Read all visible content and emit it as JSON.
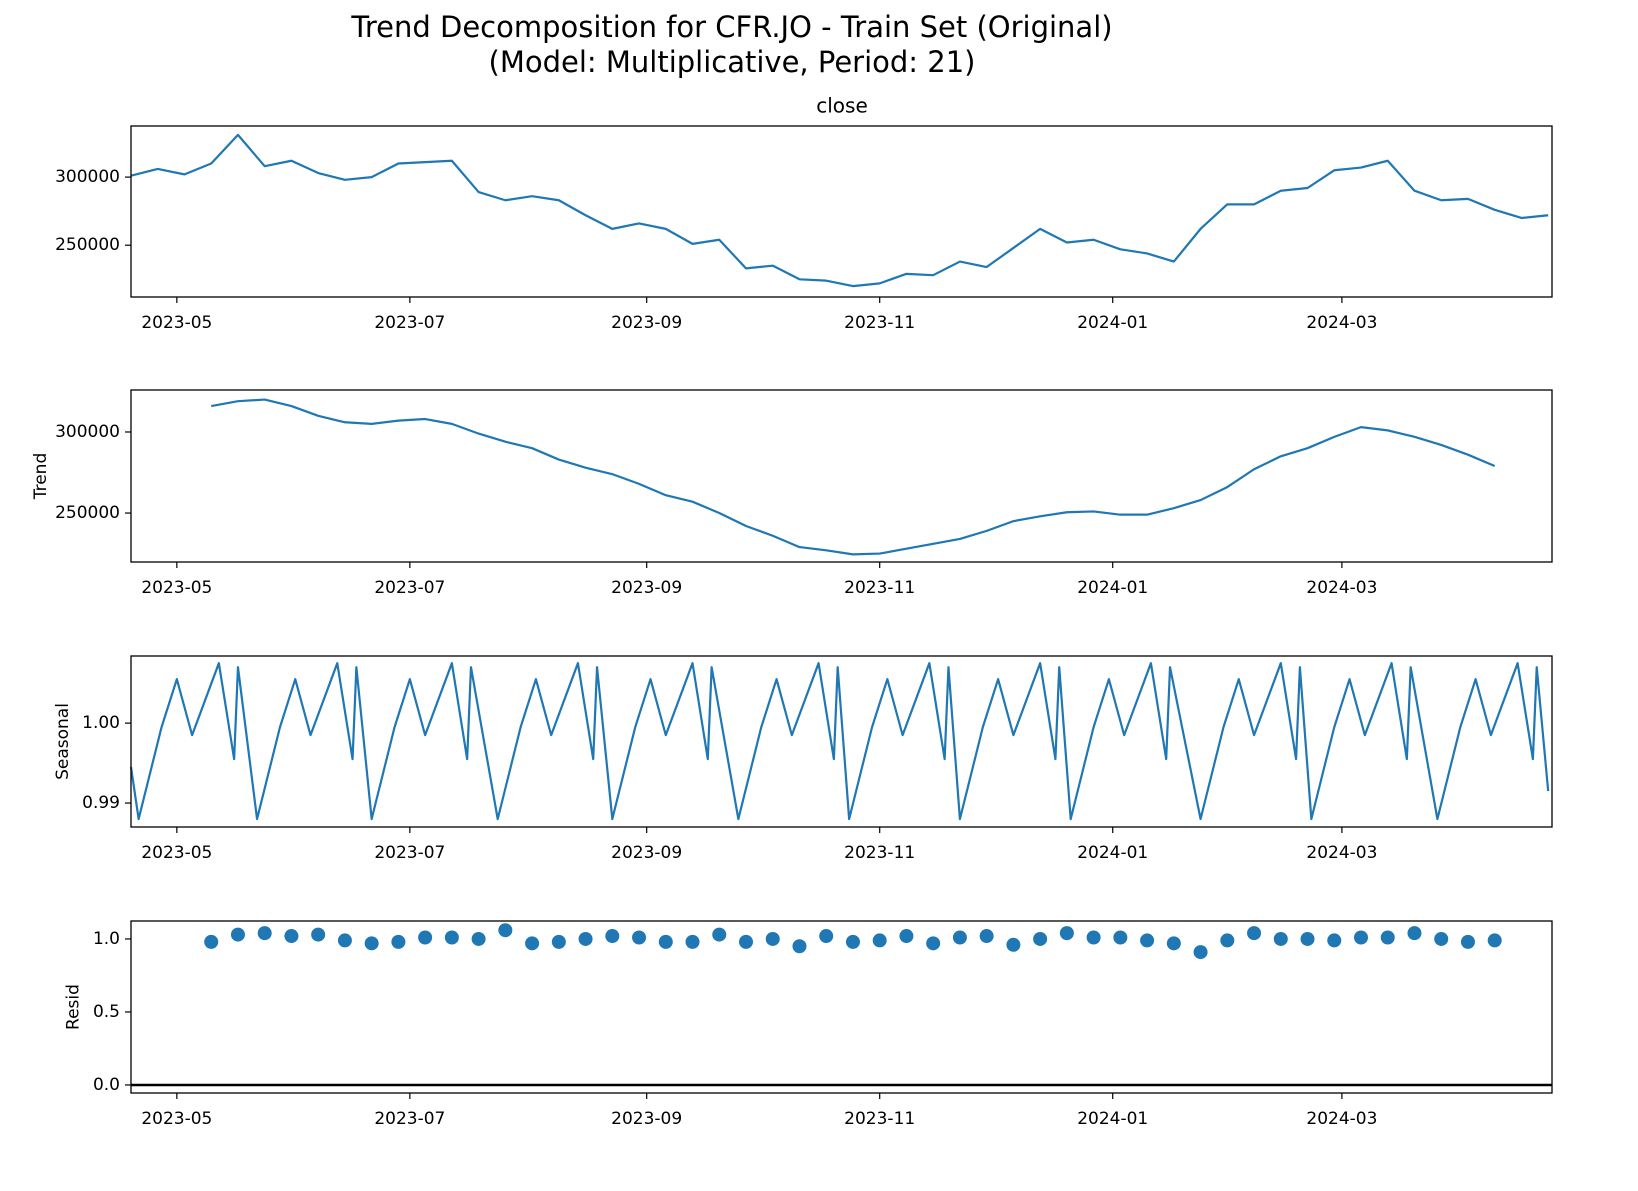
{
  "chart_data": [
    {
      "type": "line",
      "title": "Trend Decomposition for CFR.JO - Train Set (Original)",
      "subtitle": "(Model: Multiplicative, Period: 21)",
      "panel_title": "close",
      "color": "#1f77b4",
      "x": [
        "2023-04-19",
        "2023-04-26",
        "2023-05-03",
        "2023-05-10",
        "2023-05-17",
        "2023-05-24",
        "2023-05-31",
        "2023-06-07",
        "2023-06-14",
        "2023-06-21",
        "2023-06-28",
        "2023-07-05",
        "2023-07-12",
        "2023-07-19",
        "2023-07-26",
        "2023-08-02",
        "2023-08-09",
        "2023-08-16",
        "2023-08-23",
        "2023-08-30",
        "2023-09-06",
        "2023-09-13",
        "2023-09-20",
        "2023-09-27",
        "2023-10-04",
        "2023-10-11",
        "2023-10-18",
        "2023-10-25",
        "2023-11-01",
        "2023-11-08",
        "2023-11-15",
        "2023-11-22",
        "2023-11-29",
        "2023-12-06",
        "2023-12-13",
        "2023-12-20",
        "2023-12-27",
        "2024-01-03",
        "2024-01-10",
        "2024-01-17",
        "2024-01-24",
        "2024-01-31",
        "2024-02-07",
        "2024-02-14",
        "2024-02-21",
        "2024-02-28",
        "2024-03-06",
        "2024-03-13",
        "2024-03-20",
        "2024-03-27",
        "2024-04-03",
        "2024-04-10",
        "2024-04-17",
        "2024-04-24"
      ],
      "values": [
        301000,
        306000,
        302000,
        310000,
        331000,
        308000,
        312000,
        303000,
        298000,
        300000,
        310000,
        311000,
        312000,
        289000,
        283000,
        286000,
        283000,
        272000,
        262000,
        266000,
        262000,
        251000,
        254000,
        233000,
        235000,
        225000,
        224000,
        220000,
        222000,
        229000,
        228000,
        238000,
        234000,
        248000,
        262000,
        252000,
        254000,
        247000,
        244000,
        238000,
        262000,
        280000,
        280000,
        290000,
        292000,
        305000,
        307000,
        312000,
        290000,
        283000,
        284000,
        276000,
        270000,
        272000
      ],
      "xlim": [
        "2023-04-19",
        "2024-04-25"
      ],
      "xticks": [
        {
          "value": "2023-05-01",
          "label": "2023-05"
        },
        {
          "value": "2023-07-01",
          "label": "2023-07"
        },
        {
          "value": "2023-09-01",
          "label": "2023-09"
        },
        {
          "value": "2023-11-01",
          "label": "2023-11"
        },
        {
          "value": "2024-01-01",
          "label": "2024-01"
        },
        {
          "value": "2024-03-01",
          "label": "2024-03"
        }
      ],
      "ylim": [
        212000,
        337500
      ],
      "yticks": [
        250000,
        300000
      ]
    },
    {
      "type": "line",
      "ylabel": "Trend",
      "color": "#1f77b4",
      "x": [
        "2023-04-19",
        "2023-04-26",
        "2023-05-03",
        "2023-05-10",
        "2023-05-17",
        "2023-05-24",
        "2023-05-31",
        "2023-06-07",
        "2023-06-14",
        "2023-06-21",
        "2023-06-28",
        "2023-07-05",
        "2023-07-12",
        "2023-07-19",
        "2023-07-26",
        "2023-08-02",
        "2023-08-09",
        "2023-08-16",
        "2023-08-23",
        "2023-08-30",
        "2023-09-06",
        "2023-09-13",
        "2023-09-20",
        "2023-09-27",
        "2023-10-04",
        "2023-10-11",
        "2023-10-18",
        "2023-10-25",
        "2023-11-01",
        "2023-11-08",
        "2023-11-15",
        "2023-11-22",
        "2023-11-29",
        "2023-12-06",
        "2023-12-13",
        "2023-12-20",
        "2023-12-27",
        "2024-01-03",
        "2024-01-10",
        "2024-01-17",
        "2024-01-24",
        "2024-01-31",
        "2024-02-07",
        "2024-02-14",
        "2024-02-21",
        "2024-02-28",
        "2024-03-06",
        "2024-03-13",
        "2024-03-20",
        "2024-03-27",
        "2024-04-03",
        "2024-04-10",
        "2024-04-17",
        "2024-04-24"
      ],
      "values": [
        null,
        null,
        null,
        316000,
        319000,
        320000,
        316000,
        310000,
        306000,
        305000,
        307000,
        308000,
        305000,
        299000,
        294000,
        290000,
        283000,
        278000,
        274000,
        268000,
        261000,
        257000,
        250000,
        242000,
        236000,
        229000,
        227000,
        224500,
        225000,
        228000,
        231000,
        234000,
        239000,
        245000,
        248000,
        250500,
        251000,
        249000,
        249000,
        253000,
        258000,
        266000,
        277000,
        285000,
        290000,
        297000,
        303000,
        301000,
        297000,
        292000,
        286000,
        279000,
        null,
        null
      ],
      "xlim": [
        "2023-04-19",
        "2024-04-25"
      ],
      "xticks": [
        {
          "value": "2023-05-01",
          "label": "2023-05"
        },
        {
          "value": "2023-07-01",
          "label": "2023-07"
        },
        {
          "value": "2023-09-01",
          "label": "2023-09"
        },
        {
          "value": "2023-11-01",
          "label": "2023-11"
        },
        {
          "value": "2024-01-01",
          "label": "2024-01"
        },
        {
          "value": "2024-03-01",
          "label": "2024-03"
        }
      ],
      "ylim": [
        219800,
        325900
      ],
      "yticks": [
        250000,
        300000
      ]
    },
    {
      "type": "line",
      "ylabel": "Seasonal",
      "color": "#1f77b4",
      "x": [
        "2023-04-19",
        "2023-04-21",
        "2023-04-27",
        "2023-05-01",
        "2023-05-05",
        "2023-05-12",
        "2023-05-16",
        "2023-05-17",
        "2023-05-22",
        "2023-05-28",
        "2023-06-01",
        "2023-06-05",
        "2023-06-12",
        "2023-06-16",
        "2023-06-17",
        "2023-06-21",
        "2023-06-27",
        "2023-07-01",
        "2023-07-05",
        "2023-07-12",
        "2023-07-16",
        "2023-07-17",
        "2023-07-24",
        "2023-07-30",
        "2023-08-03",
        "2023-08-07",
        "2023-08-14",
        "2023-08-18",
        "2023-08-19",
        "2023-08-23",
        "2023-08-29",
        "2023-09-02",
        "2023-09-06",
        "2023-09-13",
        "2023-09-17",
        "2023-09-18",
        "2023-09-25",
        "2023-10-01",
        "2023-10-05",
        "2023-10-09",
        "2023-10-16",
        "2023-10-20",
        "2023-10-21",
        "2023-10-24",
        "2023-10-30",
        "2023-11-03",
        "2023-11-07",
        "2023-11-14",
        "2023-11-18",
        "2023-11-19",
        "2023-11-22",
        "2023-11-28",
        "2023-12-02",
        "2023-12-06",
        "2023-12-13",
        "2023-12-17",
        "2023-12-18",
        "2023-12-21",
        "2023-12-27",
        "2023-12-31",
        "2024-01-04",
        "2024-01-11",
        "2024-01-15",
        "2024-01-16",
        "2024-01-24",
        "2024-01-30",
        "2024-02-03",
        "2024-02-07",
        "2024-02-14",
        "2024-02-18",
        "2024-02-19",
        "2024-02-22",
        "2024-02-28",
        "2024-03-03",
        "2024-03-07",
        "2024-03-14",
        "2024-03-18",
        "2024-03-19",
        "2024-03-26",
        "2024-04-01",
        "2024-04-05",
        "2024-04-09",
        "2024-04-16",
        "2024-04-20",
        "2024-04-21",
        "2024-04-24"
      ],
      "values": [
        0.9945,
        0.988,
        0.9995,
        1.0055,
        0.9985,
        1.0075,
        0.9955,
        1.007,
        0.988,
        0.9995,
        1.0055,
        0.9985,
        1.0075,
        0.9955,
        1.007,
        0.988,
        0.9995,
        1.0055,
        0.9985,
        1.0075,
        0.9955,
        1.007,
        0.988,
        0.9995,
        1.0055,
        0.9985,
        1.0075,
        0.9955,
        1.007,
        0.988,
        0.9995,
        1.0055,
        0.9985,
        1.0075,
        0.9955,
        1.007,
        0.988,
        0.9995,
        1.0055,
        0.9985,
        1.0075,
        0.9955,
        1.007,
        0.988,
        0.9995,
        1.0055,
        0.9985,
        1.0075,
        0.9955,
        1.007,
        0.988,
        0.9995,
        1.0055,
        0.9985,
        1.0075,
        0.9955,
        1.007,
        0.988,
        0.9995,
        1.0055,
        0.9985,
        1.0075,
        0.9955,
        1.007,
        0.988,
        0.9995,
        1.0055,
        0.9985,
        1.0075,
        0.9955,
        1.007,
        0.988,
        0.9995,
        1.0055,
        0.9985,
        1.0075,
        0.9955,
        1.007,
        0.988,
        0.9995,
        1.0055,
        0.9985,
        1.0075,
        0.9955,
        1.007,
        0.9915
      ],
      "xlim": [
        "2023-04-19",
        "2024-04-25"
      ],
      "xticks": [
        {
          "value": "2023-05-01",
          "label": "2023-05"
        },
        {
          "value": "2023-07-01",
          "label": "2023-07"
        },
        {
          "value": "2023-09-01",
          "label": "2023-09"
        },
        {
          "value": "2023-11-01",
          "label": "2023-11"
        },
        {
          "value": "2024-01-01",
          "label": "2024-01"
        },
        {
          "value": "2024-03-01",
          "label": "2024-03"
        }
      ],
      "ylim": [
        0.987,
        1.0084
      ],
      "yticks": [
        0.99,
        {
          "value": 1,
          "label": "1.00"
        }
      ]
    },
    {
      "type": "scatter",
      "ylabel": "Resid",
      "color": "#1f77b4",
      "reference_line": 0,
      "reference_color": "#000000",
      "x": [
        "2023-04-19",
        "2023-04-26",
        "2023-05-03",
        "2023-05-10",
        "2023-05-17",
        "2023-05-24",
        "2023-05-31",
        "2023-06-07",
        "2023-06-14",
        "2023-06-21",
        "2023-06-28",
        "2023-07-05",
        "2023-07-12",
        "2023-07-19",
        "2023-07-26",
        "2023-08-02",
        "2023-08-09",
        "2023-08-16",
        "2023-08-23",
        "2023-08-30",
        "2023-09-06",
        "2023-09-13",
        "2023-09-20",
        "2023-09-27",
        "2023-10-04",
        "2023-10-11",
        "2023-10-18",
        "2023-10-25",
        "2023-11-01",
        "2023-11-08",
        "2023-11-15",
        "2023-11-22",
        "2023-11-29",
        "2023-12-06",
        "2023-12-13",
        "2023-12-20",
        "2023-12-27",
        "2024-01-03",
        "2024-01-10",
        "2024-01-17",
        "2024-01-24",
        "2024-01-31",
        "2024-02-07",
        "2024-02-14",
        "2024-02-21",
        "2024-02-28",
        "2024-03-06",
        "2024-03-13",
        "2024-03-20",
        "2024-03-27",
        "2024-04-03",
        "2024-04-10",
        "2024-04-17",
        "2024-04-24"
      ],
      "values": [
        null,
        null,
        null,
        0.98,
        1.03,
        1.04,
        1.02,
        1.03,
        0.99,
        0.97,
        0.98,
        1.01,
        1.01,
        1.0,
        1.06,
        0.97,
        0.98,
        1.0,
        1.02,
        1.01,
        0.98,
        0.98,
        1.03,
        0.98,
        1.0,
        0.95,
        1.02,
        0.98,
        0.99,
        1.02,
        0.97,
        1.01,
        1.02,
        0.96,
        1.0,
        1.04,
        1.01,
        1.01,
        0.99,
        0.97,
        0.91,
        0.99,
        1.04,
        1.0,
        1.0,
        0.99,
        1.01,
        1.01,
        1.04,
        1.0,
        0.98,
        0.99,
        null,
        null
      ],
      "xlim": [
        "2023-04-19",
        "2024-04-25"
      ],
      "xticks": [
        {
          "value": "2023-05-01",
          "label": "2023-05"
        },
        {
          "value": "2023-07-01",
          "label": "2023-07"
        },
        {
          "value": "2023-09-01",
          "label": "2023-09"
        },
        {
          "value": "2023-11-01",
          "label": "2023-11"
        },
        {
          "value": "2024-01-01",
          "label": "2024-01"
        },
        {
          "value": "2024-03-01",
          "label": "2024-03"
        }
      ],
      "ylim": [
        -0.055,
        1.123
      ],
      "yticks": [
        {
          "value": 0,
          "label": "0.0"
        },
        0.5,
        {
          "value": 1,
          "label": "1.0"
        }
      ]
    }
  ]
}
